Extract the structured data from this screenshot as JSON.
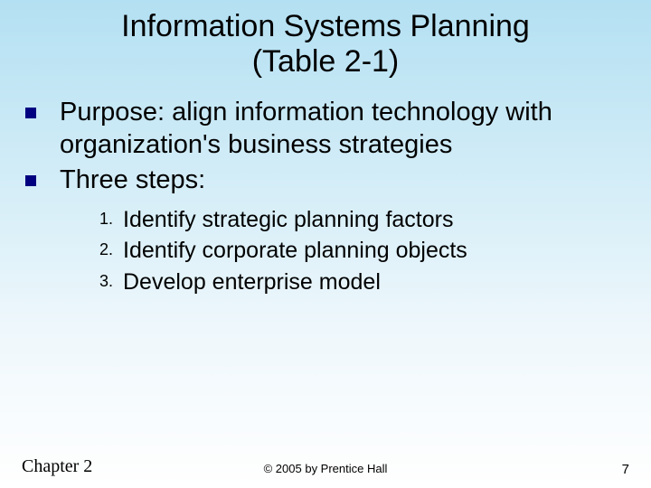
{
  "title_line1": "Information Systems Planning",
  "title_line2": "(Table 2-1)",
  "bullets": [
    "Purpose: align information technology with organization's business strategies",
    "Three steps:"
  ],
  "substeps": [
    {
      "num": "1.",
      "text": "Identify strategic planning factors"
    },
    {
      "num": "2.",
      "text": "Identify corporate planning objects"
    },
    {
      "num": "3.",
      "text": "Develop enterprise model"
    }
  ],
  "footer": {
    "chapter": "Chapter 2",
    "copyright": "© 2005 by Prentice Hall",
    "page": "7"
  },
  "colors": {
    "bullet_marker": "#000080",
    "text": "#000000",
    "bg_top": "#b3e0f2",
    "bg_bottom": "#ffffff"
  }
}
